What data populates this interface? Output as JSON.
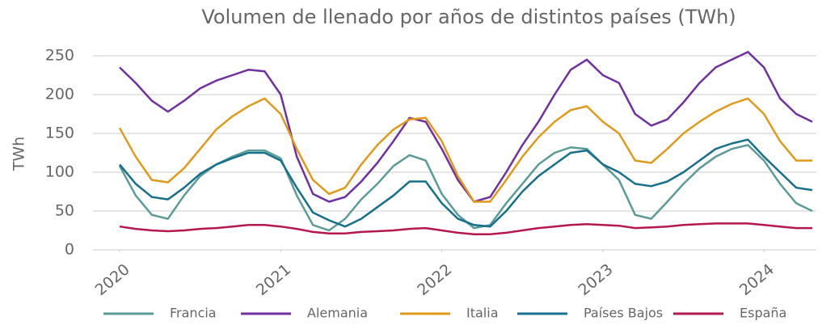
{
  "chart_data": {
    "type": "line",
    "title": "Volumen de llenado por años de distintos países (TWh)",
    "ylabel": "TWh",
    "x": [
      2020.0,
      2020.1,
      2020.2,
      2020.3,
      2020.4,
      2020.5,
      2020.6,
      2020.7,
      2020.8,
      2020.9,
      2021.0,
      2021.1,
      2021.2,
      2021.3,
      2021.4,
      2021.5,
      2021.6,
      2021.7,
      2021.8,
      2021.9,
      2022.0,
      2022.1,
      2022.2,
      2022.3,
      2022.4,
      2022.5,
      2022.6,
      2022.7,
      2022.8,
      2022.9,
      2023.0,
      2023.1,
      2023.2,
      2023.3,
      2023.4,
      2023.5,
      2023.6,
      2023.7,
      2023.8,
      2023.9,
      2024.0,
      2024.1,
      2024.2,
      2024.3
    ],
    "series": [
      {
        "name": "Francia",
        "color": "#5b9b98",
        "values": [
          108,
          70,
          45,
          40,
          70,
          95,
          110,
          120,
          128,
          128,
          118,
          70,
          32,
          25,
          40,
          65,
          85,
          108,
          122,
          115,
          72,
          45,
          28,
          32,
          60,
          85,
          110,
          125,
          132,
          130,
          110,
          90,
          45,
          40,
          62,
          85,
          105,
          120,
          130,
          135,
          115,
          85,
          60,
          50
        ]
      },
      {
        "name": "Alemania",
        "color": "#7030a0",
        "values": [
          235,
          215,
          192,
          178,
          192,
          208,
          218,
          225,
          232,
          230,
          200,
          120,
          72,
          62,
          68,
          88,
          112,
          140,
          170,
          165,
          130,
          90,
          62,
          68,
          100,
          135,
          165,
          200,
          232,
          245,
          225,
          215,
          175,
          160,
          168,
          190,
          215,
          235,
          245,
          255,
          235,
          195,
          175,
          165
        ]
      },
      {
        "name": "Italia",
        "color": "#e09a1a",
        "values": [
          157,
          120,
          90,
          87,
          105,
          130,
          155,
          172,
          185,
          195,
          175,
          130,
          90,
          72,
          80,
          110,
          135,
          155,
          168,
          170,
          140,
          95,
          62,
          62,
          90,
          120,
          145,
          165,
          180,
          185,
          165,
          150,
          115,
          112,
          130,
          150,
          165,
          178,
          188,
          195,
          175,
          140,
          115,
          115
        ]
      },
      {
        "name": "Países Bajos",
        "color": "#17708b",
        "values": [
          110,
          85,
          68,
          65,
          80,
          98,
          110,
          118,
          125,
          125,
          115,
          80,
          48,
          38,
          30,
          40,
          55,
          70,
          88,
          88,
          60,
          40,
          32,
          30,
          50,
          75,
          95,
          110,
          125,
          128,
          110,
          100,
          85,
          82,
          88,
          100,
          115,
          130,
          137,
          142,
          120,
          100,
          80,
          77
        ]
      },
      {
        "name": "España",
        "color": "#b5174f",
        "values": [
          30,
          27,
          25,
          24,
          25,
          27,
          28,
          30,
          32,
          32,
          30,
          27,
          23,
          21,
          21,
          23,
          24,
          25,
          27,
          28,
          25,
          22,
          20,
          20,
          22,
          25,
          28,
          30,
          32,
          33,
          32,
          31,
          28,
          29,
          30,
          32,
          33,
          34,
          34,
          34,
          32,
          30,
          28,
          28
        ]
      }
    ],
    "xlim": [
      2020,
      2024.3
    ],
    "xticks": [
      2020,
      2021,
      2022,
      2023,
      2024
    ],
    "ylim": [
      0,
      250
    ],
    "yticks": [
      0,
      50,
      100,
      150,
      200,
      250
    ],
    "grid": true,
    "legend": "bottom"
  }
}
